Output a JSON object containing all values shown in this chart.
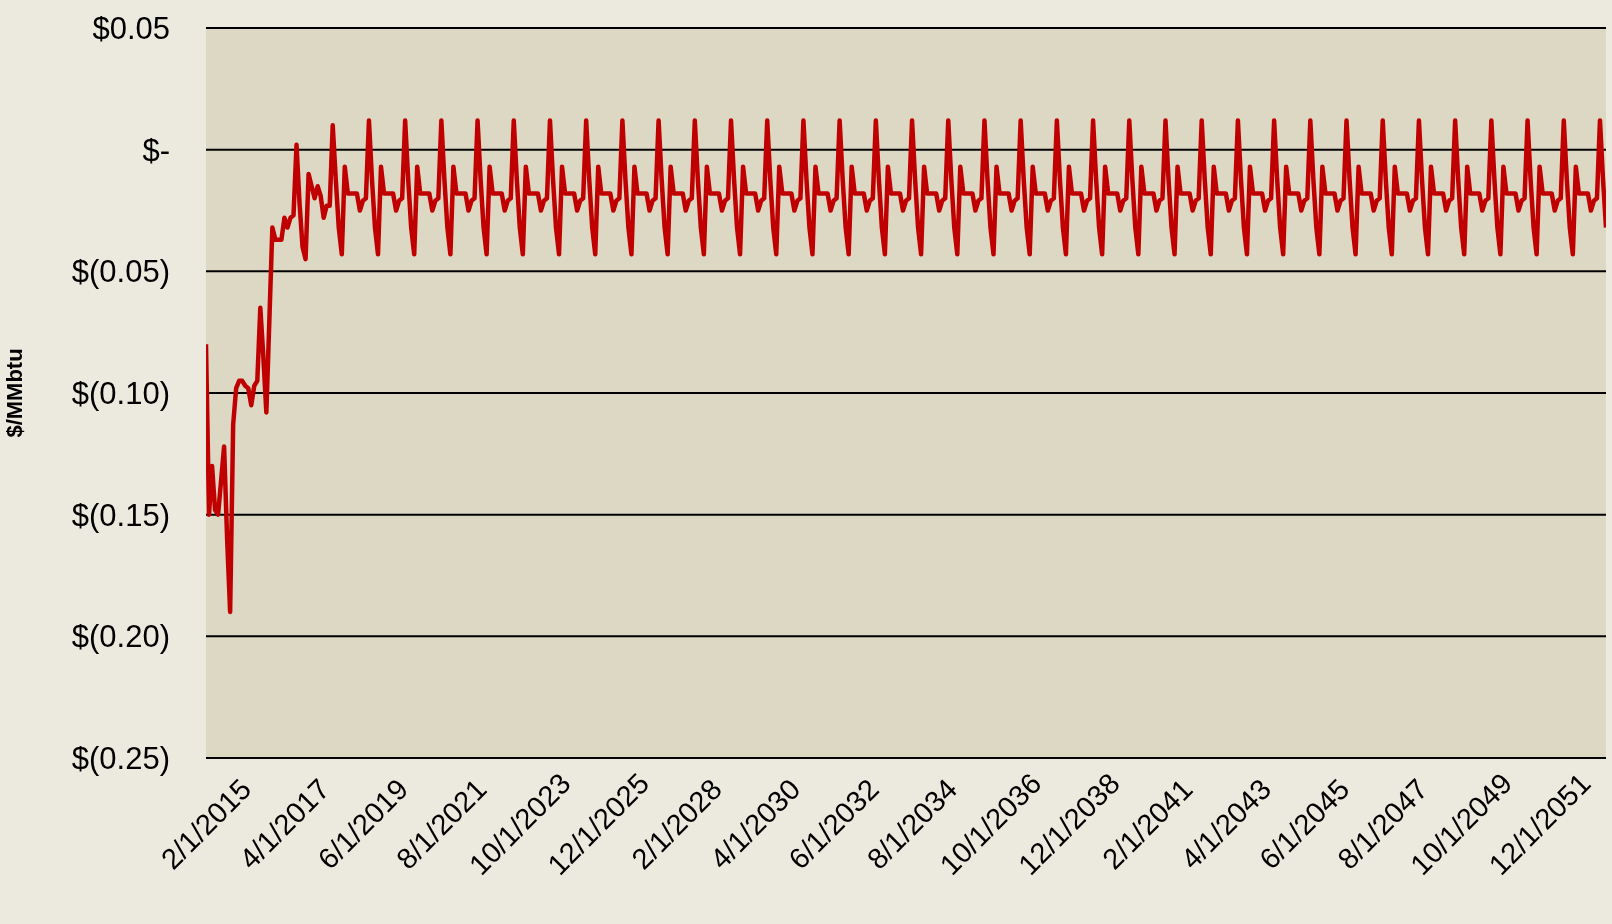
{
  "chart_data": {
    "type": "line",
    "ylabel": "$/MMbtu",
    "categories": [
      "2/1/2015",
      null,
      null,
      null,
      null,
      null,
      null,
      null,
      null,
      null,
      null,
      null,
      null,
      null,
      null,
      null,
      null,
      null,
      null,
      null,
      null,
      null,
      null,
      null,
      null,
      null,
      "4/1/2017",
      null,
      null,
      null,
      null,
      null,
      null,
      null,
      null,
      null,
      null,
      null,
      null,
      null,
      null,
      null,
      null,
      null,
      null,
      null,
      null,
      null,
      null,
      null,
      null,
      null,
      "6/1/2019",
      null,
      null,
      null,
      null,
      null,
      null,
      null,
      null,
      null,
      null,
      null,
      null,
      null,
      null,
      null,
      null,
      null,
      null,
      null,
      null,
      null,
      null,
      null,
      null,
      null,
      "8/1/2021",
      null,
      null,
      null,
      null,
      null,
      null,
      null,
      null,
      null,
      null,
      null,
      null,
      null,
      null,
      null,
      null,
      null,
      null,
      null,
      null,
      null,
      null,
      null,
      null,
      null,
      "10/1/2023",
      null,
      null,
      null,
      null,
      null,
      null,
      null,
      null,
      null,
      null,
      null,
      null,
      null,
      null,
      null,
      null,
      null,
      null,
      null,
      null,
      null,
      null,
      null,
      null,
      null,
      "12/1/2025",
      null,
      null,
      null,
      null,
      null,
      null,
      null,
      null,
      null,
      null,
      null,
      null,
      null,
      null,
      null,
      null,
      null,
      null,
      null,
      null,
      null,
      null,
      null,
      null,
      null,
      "2/1/2028",
      null,
      null,
      null,
      null,
      null,
      null,
      null,
      null,
      null,
      null,
      null,
      null,
      null,
      null,
      null,
      null,
      null,
      null,
      null,
      null,
      null,
      null,
      null,
      null,
      null,
      "4/1/2030",
      null,
      null,
      null,
      null,
      null,
      null,
      null,
      null,
      null,
      null,
      null,
      null,
      null,
      null,
      null,
      null,
      null,
      null,
      null,
      null,
      null,
      null,
      null,
      null,
      null,
      "6/1/2032",
      null,
      null,
      null,
      null,
      null,
      null,
      null,
      null,
      null,
      null,
      null,
      null,
      null,
      null,
      null,
      null,
      null,
      null,
      null,
      null,
      null,
      null,
      null,
      null,
      null,
      "8/1/2034",
      null,
      null,
      null,
      null,
      null,
      null,
      null,
      null,
      null,
      null,
      null,
      null,
      null,
      null,
      null,
      null,
      null,
      null,
      null,
      null,
      null,
      null,
      null,
      null,
      null,
      "10/1/2036",
      null,
      null,
      null,
      null,
      null,
      null,
      null,
      null,
      null,
      null,
      null,
      null,
      null,
      null,
      null,
      null,
      null,
      null,
      null,
      null,
      null,
      null,
      null,
      null,
      null,
      "12/1/2038",
      null,
      null,
      null,
      null,
      null,
      null,
      null,
      null,
      null,
      null,
      null,
      null,
      null,
      null,
      null,
      null,
      null,
      null,
      null,
      null,
      null,
      null,
      null,
      null,
      null,
      "2/1/2041",
      null,
      null,
      null,
      null,
      null,
      null,
      null,
      null,
      null,
      null,
      null,
      null,
      null,
      null,
      null,
      null,
      null,
      null,
      null,
      null,
      null,
      null,
      null,
      null,
      null,
      "4/1/2043",
      null,
      null,
      null,
      null,
      null,
      null,
      null,
      null,
      null,
      null,
      null,
      null,
      null,
      null,
      null,
      null,
      null,
      null,
      null,
      null,
      null,
      null,
      null,
      null,
      null,
      "6/1/2045",
      null,
      null,
      null,
      null,
      null,
      null,
      null,
      null,
      null,
      null,
      null,
      null,
      null,
      null,
      null,
      null,
      null,
      null,
      null,
      null,
      null,
      null,
      null,
      null,
      null,
      "8/1/2047",
      null,
      null,
      null,
      null,
      null,
      null,
      null,
      null,
      null,
      null,
      null,
      null,
      null,
      null,
      null,
      null,
      null,
      null,
      null,
      null,
      null,
      null,
      null,
      null,
      null,
      "10/1/2049",
      null,
      null,
      null,
      null,
      null,
      null,
      null,
      null,
      null,
      null,
      null,
      null,
      null,
      null,
      null,
      null,
      null,
      null,
      null,
      null,
      null,
      null,
      null,
      null,
      null,
      "12/1/2051",
      null,
      null,
      null,
      null,
      null,
      null,
      null,
      null,
      null,
      null,
      null,
      null,
      null,
      null,
      null,
      null,
      null,
      null,
      null,
      null,
      null,
      null
    ],
    "series": [
      {
        "color": "#c00000",
        "values": [
          -0.08,
          -0.15,
          -0.13,
          -0.148,
          -0.15,
          -0.136,
          -0.122,
          -0.16,
          -0.19,
          -0.113,
          -0.098,
          -0.095,
          -0.095,
          -0.097,
          -0.098,
          -0.105,
          -0.097,
          -0.095,
          -0.065,
          -0.085,
          -0.108,
          -0.07,
          -0.032,
          -0.037,
          -0.037,
          -0.037,
          -0.028,
          -0.032,
          -0.028,
          -0.027,
          0.002,
          -0.022,
          -0.04,
          -0.045,
          -0.01,
          -0.015,
          -0.02,
          -0.015,
          -0.019,
          -0.028,
          -0.023,
          -0.023,
          0.01,
          -0.012,
          -0.032,
          -0.043,
          -0.007,
          -0.018,
          -0.018,
          -0.018,
          -0.018,
          -0.025,
          -0.021,
          -0.02,
          0.012,
          -0.012,
          -0.032,
          -0.043,
          -0.007,
          -0.018,
          -0.018,
          -0.018,
          -0.018,
          -0.025,
          -0.021,
          -0.02,
          0.012,
          -0.012,
          -0.032,
          -0.043,
          -0.007,
          -0.018,
          -0.018,
          -0.018,
          -0.018,
          -0.025,
          -0.021,
          -0.02,
          0.012,
          -0.012,
          -0.032,
          -0.043,
          -0.007,
          -0.018,
          -0.018,
          -0.018,
          -0.018,
          -0.025,
          -0.021,
          -0.02,
          0.012,
          -0.012,
          -0.032,
          -0.043,
          -0.007,
          -0.018,
          -0.018,
          -0.018,
          -0.018,
          -0.025,
          -0.021,
          -0.02,
          0.012,
          -0.012,
          -0.032,
          -0.043,
          -0.007,
          -0.018,
          -0.018,
          -0.018,
          -0.018,
          -0.025,
          -0.021,
          -0.02,
          0.012,
          -0.012,
          -0.032,
          -0.043,
          -0.007,
          -0.018,
          -0.018,
          -0.018,
          -0.018,
          -0.025,
          -0.021,
          -0.02,
          0.012,
          -0.012,
          -0.032,
          -0.043,
          -0.007,
          -0.018,
          -0.018,
          -0.018,
          -0.018,
          -0.025,
          -0.021,
          -0.02,
          0.012,
          -0.012,
          -0.032,
          -0.043,
          -0.007,
          -0.018,
          -0.018,
          -0.018,
          -0.018,
          -0.025,
          -0.021,
          -0.02,
          0.012,
          -0.012,
          -0.032,
          -0.043,
          -0.007,
          -0.018,
          -0.018,
          -0.018,
          -0.018,
          -0.025,
          -0.021,
          -0.02,
          0.012,
          -0.012,
          -0.032,
          -0.043,
          -0.007,
          -0.018,
          -0.018,
          -0.018,
          -0.018,
          -0.025,
          -0.021,
          -0.02,
          0.012,
          -0.012,
          -0.032,
          -0.043,
          -0.007,
          -0.018,
          -0.018,
          -0.018,
          -0.018,
          -0.025,
          -0.021,
          -0.02,
          0.012,
          -0.012,
          -0.032,
          -0.043,
          -0.007,
          -0.018,
          -0.018,
          -0.018,
          -0.018,
          -0.025,
          -0.021,
          -0.02,
          0.012,
          -0.012,
          -0.032,
          -0.043,
          -0.007,
          -0.018,
          -0.018,
          -0.018,
          -0.018,
          -0.025,
          -0.021,
          -0.02,
          0.012,
          -0.012,
          -0.032,
          -0.043,
          -0.007,
          -0.018,
          -0.018,
          -0.018,
          -0.018,
          -0.025,
          -0.021,
          -0.02,
          0.012,
          -0.012,
          -0.032,
          -0.043,
          -0.007,
          -0.018,
          -0.018,
          -0.018,
          -0.018,
          -0.025,
          -0.021,
          -0.02,
          0.012,
          -0.012,
          -0.032,
          -0.043,
          -0.007,
          -0.018,
          -0.018,
          -0.018,
          -0.018,
          -0.025,
          -0.021,
          -0.02,
          0.012,
          -0.012,
          -0.032,
          -0.043,
          -0.007,
          -0.018,
          -0.018,
          -0.018,
          -0.018,
          -0.025,
          -0.021,
          -0.02,
          0.012,
          -0.012,
          -0.032,
          -0.043,
          -0.007,
          -0.018,
          -0.018,
          -0.018,
          -0.018,
          -0.025,
          -0.021,
          -0.02,
          0.012,
          -0.012,
          -0.032,
          -0.043,
          -0.007,
          -0.018,
          -0.018,
          -0.018,
          -0.018,
          -0.025,
          -0.021,
          -0.02,
          0.012,
          -0.012,
          -0.032,
          -0.043,
          -0.007,
          -0.018,
          -0.018,
          -0.018,
          -0.018,
          -0.025,
          -0.021,
          -0.02,
          0.012,
          -0.012,
          -0.032,
          -0.043,
          -0.007,
          -0.018,
          -0.018,
          -0.018,
          -0.018,
          -0.025,
          -0.021,
          -0.02,
          0.012,
          -0.012,
          -0.032,
          -0.043,
          -0.007,
          -0.018,
          -0.018,
          -0.018,
          -0.018,
          -0.025,
          -0.021,
          -0.02,
          0.012,
          -0.012,
          -0.032,
          -0.043,
          -0.007,
          -0.018,
          -0.018,
          -0.018,
          -0.018,
          -0.025,
          -0.021,
          -0.02,
          0.012,
          -0.012,
          -0.032,
          -0.043,
          -0.007,
          -0.018,
          -0.018,
          -0.018,
          -0.018,
          -0.025,
          -0.021,
          -0.02,
          0.012,
          -0.012,
          -0.032,
          -0.043,
          -0.007,
          -0.018,
          -0.018,
          -0.018,
          -0.018,
          -0.025,
          -0.021,
          -0.02,
          0.012,
          -0.012,
          -0.032,
          -0.043,
          -0.007,
          -0.018,
          -0.018,
          -0.018,
          -0.018,
          -0.025,
          -0.021,
          -0.02,
          0.012,
          -0.012,
          -0.032,
          -0.043,
          -0.007,
          -0.018,
          -0.018,
          -0.018,
          -0.018,
          -0.025,
          -0.021,
          -0.02,
          0.012,
          -0.012,
          -0.032,
          -0.043,
          -0.007,
          -0.018,
          -0.018,
          -0.018,
          -0.018,
          -0.025,
          -0.021,
          -0.02,
          0.012,
          -0.012,
          -0.032,
          -0.043,
          -0.007,
          -0.018,
          -0.018,
          -0.018,
          -0.018,
          -0.025,
          -0.021,
          -0.02,
          0.012,
          -0.012,
          -0.032,
          -0.043,
          -0.007,
          -0.018,
          -0.018,
          -0.018,
          -0.018,
          -0.025,
          -0.021,
          -0.02,
          0.012,
          -0.012,
          -0.032,
          -0.043,
          -0.007,
          -0.018,
          -0.018,
          -0.018,
          -0.018,
          -0.025,
          -0.021,
          -0.02,
          0.012,
          -0.012,
          -0.032,
          -0.043,
          -0.007,
          -0.018,
          -0.018,
          -0.018,
          -0.018,
          -0.025,
          -0.021,
          -0.02,
          0.012,
          -0.012,
          -0.032,
          -0.043,
          -0.007,
          -0.018,
          -0.018,
          -0.018,
          -0.018,
          -0.025,
          -0.021,
          -0.02,
          0.012,
          -0.012,
          -0.032,
          -0.043,
          -0.007,
          -0.018,
          -0.018,
          -0.018,
          -0.018,
          -0.025,
          -0.021,
          -0.02,
          0.012,
          -0.012,
          -0.032
        ]
      }
    ],
    "ylim": [
      -0.25,
      0.05
    ],
    "yticks": [
      {
        "value": -0.25,
        "label": "$(0.25)"
      },
      {
        "value": -0.2,
        "label": "$(0.20)"
      },
      {
        "value": -0.15,
        "label": "$(0.15)"
      },
      {
        "value": -0.1,
        "label": "$(0.10)"
      },
      {
        "value": -0.05,
        "label": "$(0.05)"
      },
      {
        "value": 0,
        "label": "$-"
      },
      {
        "value": 0.05,
        "label": "$0.05"
      }
    ],
    "grid": "y",
    "legend": false,
    "marker": "none",
    "line_style": "solid"
  }
}
